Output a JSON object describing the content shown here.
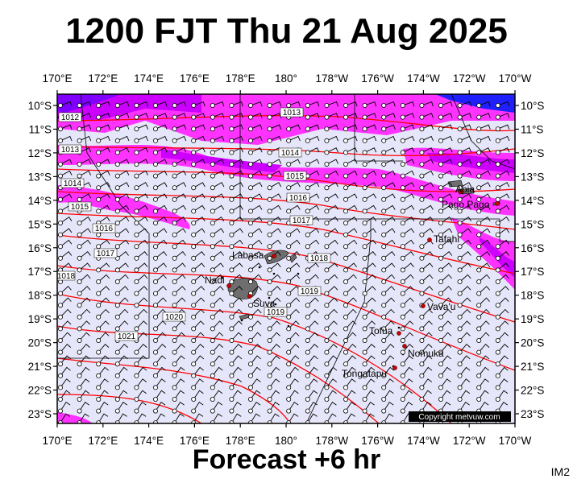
{
  "title": "1200 FJT Thu 21 Aug 2025",
  "subtitle": "Forecast +6 hr",
  "panel_id": "IM2",
  "copyright": "Copyright metvuw.com",
  "lon_labels": [
    "170°E",
    "172°E",
    "174°E",
    "176°E",
    "178°E",
    "180°",
    "178°W",
    "176°W",
    "174°W",
    "172°W",
    "170°W"
  ],
  "lat_labels": [
    "10°S",
    "11°S",
    "12°S",
    "13°S",
    "14°S",
    "15°S",
    "16°S",
    "17°S",
    "18°S",
    "19°S",
    "20°S",
    "21°S",
    "22°S",
    "23°S"
  ],
  "isobar_labels": [
    "1012",
    "1013",
    "1013",
    "1014",
    "1014",
    "1015",
    "1015",
    "1016",
    "1016",
    "1017",
    "1017",
    "1018",
    "1018",
    "1019",
    "1019",
    "1020",
    "1021"
  ],
  "places": [
    "Apia",
    "Pago Pago",
    "Tafahi",
    "Labasa",
    "Nadi",
    "Suva",
    "Vava'u",
    "Tofua",
    "Nomuka",
    "Tongatapu"
  ],
  "colors": {
    "background": "#e6e6fa",
    "precip_light": "#ff33ff",
    "precip_medium": "#cc00ff",
    "precip_heavy": "#8000ff",
    "precip_extreme": "#2020ff",
    "isobar": "#ff0000",
    "land": "#6e6e6e",
    "town": "#cc0000"
  }
}
